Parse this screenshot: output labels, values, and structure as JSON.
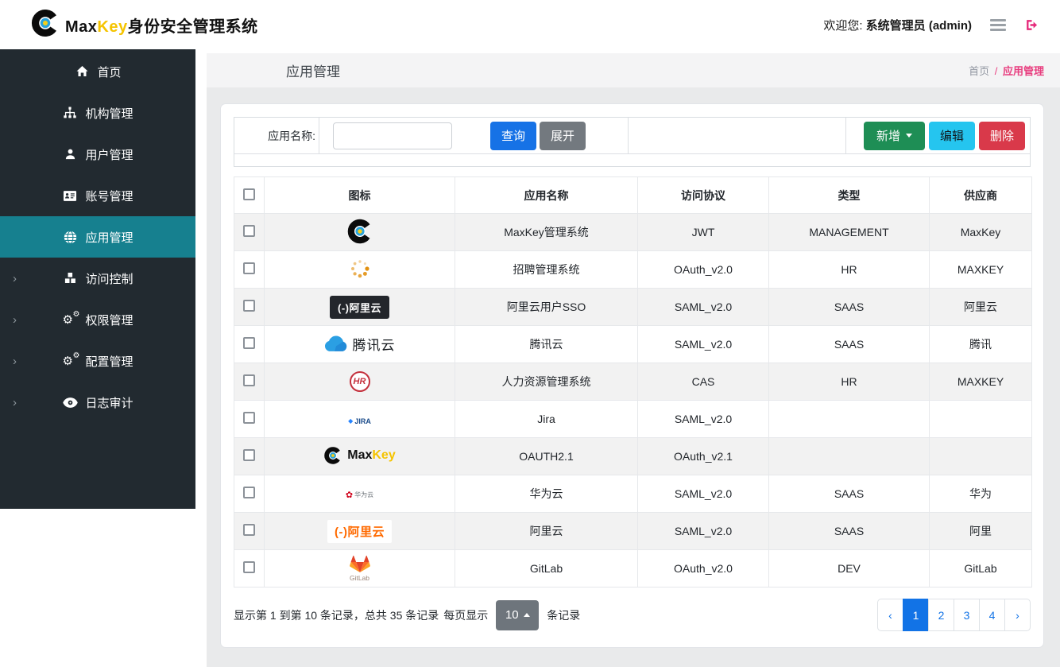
{
  "brand": {
    "max": "Max",
    "key": "Key",
    "rest": "身份安全管理系统"
  },
  "header": {
    "welcome": "欢迎您:",
    "user": "系统管理员 (admin)"
  },
  "sidebar": {
    "items": [
      {
        "icon": "home-icon",
        "label": "首页",
        "active": false,
        "chevron": false
      },
      {
        "icon": "sitemap-icon",
        "label": "机构管理",
        "active": false,
        "chevron": false
      },
      {
        "icon": "user-icon",
        "label": "用户管理",
        "active": false,
        "chevron": false
      },
      {
        "icon": "idcard-icon",
        "label": "账号管理",
        "active": false,
        "chevron": false
      },
      {
        "icon": "globe-icon",
        "label": "应用管理",
        "active": true,
        "chevron": false
      },
      {
        "icon": "cubes-icon",
        "label": "访问控制",
        "active": false,
        "chevron": true
      },
      {
        "icon": "gears-icon",
        "label": "权限管理",
        "active": false,
        "chevron": true
      },
      {
        "icon": "gears-icon",
        "label": "配置管理",
        "active": false,
        "chevron": true
      },
      {
        "icon": "eye-icon",
        "label": "日志审计",
        "active": false,
        "chevron": true
      }
    ]
  },
  "page": {
    "title": "应用管理",
    "home": "首页",
    "sep": "/",
    "current": "应用管理"
  },
  "search": {
    "label": "应用名称:",
    "input_value": "",
    "query": "查询",
    "expand": "展开",
    "add": "新增",
    "edit": "编辑",
    "del": "删除"
  },
  "table": {
    "headers": [
      "图标",
      "应用名称",
      "访问协议",
      "类型",
      "供应商"
    ],
    "rows": [
      {
        "icon_type": "maxkey-logo-icon",
        "icon_text": "",
        "name": "MaxKey管理系统",
        "protocol": "JWT",
        "type": "MANAGEMENT",
        "vendor": "MaxKey"
      },
      {
        "icon_type": "spinner-icon",
        "icon_text": "",
        "name": "招聘管理系统",
        "protocol": "OAuth_v2.0",
        "type": "HR",
        "vendor": "MAXKEY"
      },
      {
        "icon_type": "aliyun-dark-icon",
        "icon_text": "(-)阿里云",
        "name": "阿里云用户SSO",
        "protocol": "SAML_v2.0",
        "type": "SAAS",
        "vendor": "阿里云"
      },
      {
        "icon_type": "tencent-cloud-icon",
        "icon_text": "腾讯云",
        "name": "腾讯云",
        "protocol": "SAML_v2.0",
        "type": "SAAS",
        "vendor": "腾讯"
      },
      {
        "icon_type": "hr-logo-icon",
        "icon_text": "HR",
        "name": "人力资源管理系统",
        "protocol": "CAS",
        "type": "HR",
        "vendor": "MAXKEY"
      },
      {
        "icon_type": "jira-icon",
        "icon_text": "JIRA",
        "name": "Jira",
        "protocol": "SAML_v2.0",
        "type": "",
        "vendor": ""
      },
      {
        "icon_type": "maxkey-full-icon",
        "icon_text": "MaxKey",
        "name": "OAUTH2.1",
        "protocol": "OAuth_v2.1",
        "type": "",
        "vendor": ""
      },
      {
        "icon_type": "huawei-icon",
        "icon_text": "华为云",
        "name": "华为云",
        "protocol": "SAML_v2.0",
        "type": "SAAS",
        "vendor": "华为"
      },
      {
        "icon_type": "aliyun-orange-icon",
        "icon_text": "(-)阿里云",
        "name": "阿里云",
        "protocol": "SAML_v2.0",
        "type": "SAAS",
        "vendor": "阿里"
      },
      {
        "icon_type": "gitlab-icon",
        "icon_text": "GitLab",
        "name": "GitLab",
        "protocol": "OAuth_v2.0",
        "type": "DEV",
        "vendor": "GitLab"
      }
    ]
  },
  "pagination": {
    "info": "显示第 1 到第 10 条记录，总共 35 条记录",
    "per_prefix": "每页显示",
    "per_page": "10",
    "per_suffix": "条记录",
    "pages": [
      "‹",
      "1",
      "2",
      "3",
      "4",
      "›"
    ],
    "active": "1"
  }
}
